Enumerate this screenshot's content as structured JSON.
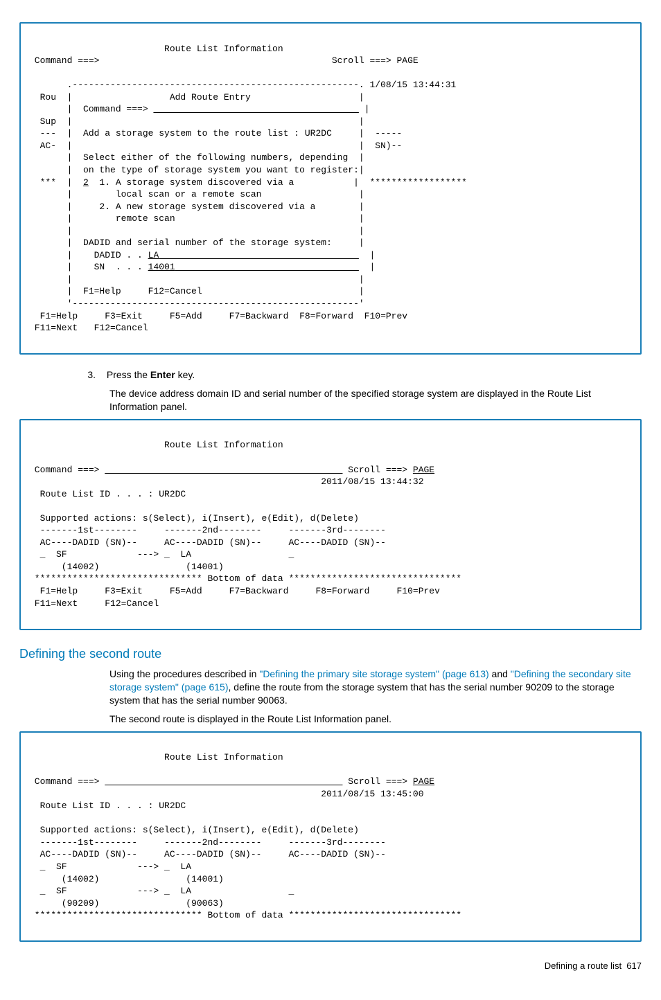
{
  "terminal1": {
    "pre1": "                         Route List Information\n Command ===>                                           Scroll ===> PAGE\n\n       .-----------------------------------------------------. 1/08/15 13:44:31\n  Rou  |                  Add Route Entry                    |\n       |  Command ===> ",
    "cmd_input": "                                      ",
    "pre2": " |\n  Sup  |                                                     |\n  ---  |  Add a storage system to the route list : UR2DC     |  -----\n  AC-  |                                                     |  SN)--\n       |  Select either of the following numbers, depending  |\n       |  on the type of storage system you want to register:|\n  ***  |  ",
    "choice": "2",
    "pre3": "  1. A storage system discovered via a           |  ******************\n       |        local scan or a remote scan                  |\n       |     2. A new storage system discovered via a        |\n       |        remote scan                                  |\n       |                                                     |\n       |  DADID and serial number of the storage system:     |\n       |    DADID . . ",
    "dadid": "LA",
    "dadid_pad": "                                     ",
    "pre4": "  |\n       |    SN  . . . ",
    "sn": "14001",
    "sn_pad": "                                  ",
    "pre5": "  |\n       |                                                     |\n       |  F1=Help     F12=Cancel                             |\n       '-----------------------------------------------------'\n  F1=Help     F3=Exit     F5=Add     F7=Backward  F8=Forward  F10=Prev\n F11=Next   F12=Cancel"
  },
  "step3": {
    "num": "3.",
    "text_pre": "Press the ",
    "key": "Enter",
    "text_post": " key.",
    "para": "The device address domain ID and serial number of the specified storage system are displayed in the Route List Information panel."
  },
  "terminal2": {
    "pre1": "                         Route List Information\n\n Command ===> ",
    "cmd": "                                            ",
    "pre2": " Scroll ===> ",
    "scroll": "PAGE",
    "pre3": "\n                                                      2011/08/15 13:44:32\n  Route List ID . . . : UR2DC\n\n  Supported actions: s(Select), i(Insert), e(Edit), d(Delete)\n  -------1st--------     -------2nd--------     -------3rd--------\n  AC----DADID (SN)--     AC----DADID (SN)--     AC----DADID (SN)--\n  _  SF             ---> _  LA                  _\n      (14002)                (14001)\n ******************************* Bottom of data ********************************\n  F1=Help     F3=Exit     F5=Add     F7=Backward     F8=Forward     F10=Prev\n F11=Next     F12=Cancel"
  },
  "section2": {
    "heading": "Defining the second route",
    "p1_a": "Using the procedures described in ",
    "link1": "\"Defining the primary site storage system\" (page 613)",
    "p1_b": " and ",
    "link2": "\"Defining the secondary site storage system\" (page 615)",
    "p1_c": ", define the route from the storage system that has the serial number 90209 to the storage system that has the serial number 90063.",
    "p2": "The second route is displayed in the Route List Information panel."
  },
  "terminal3": {
    "pre1": "                         Route List Information\n\n Command ===> ",
    "cmd": "                                            ",
    "pre2": " Scroll ===> ",
    "scroll": "PAGE",
    "pre3": "\n                                                      2011/08/15 13:45:00\n  Route List ID . . . : UR2DC\n\n  Supported actions: s(Select), i(Insert), e(Edit), d(Delete)\n  -------1st--------     -------2nd--------     -------3rd--------\n  AC----DADID (SN)--     AC----DADID (SN)--     AC----DADID (SN)--\n  _  SF             ---> _  LA                  \n      (14002)                (14001)\n  _  SF             ---> _  LA                  _\n      (90209)                (90063)\n ******************************* Bottom of data ********************************"
  },
  "footer": {
    "label": "Defining a route list",
    "page": "617"
  }
}
